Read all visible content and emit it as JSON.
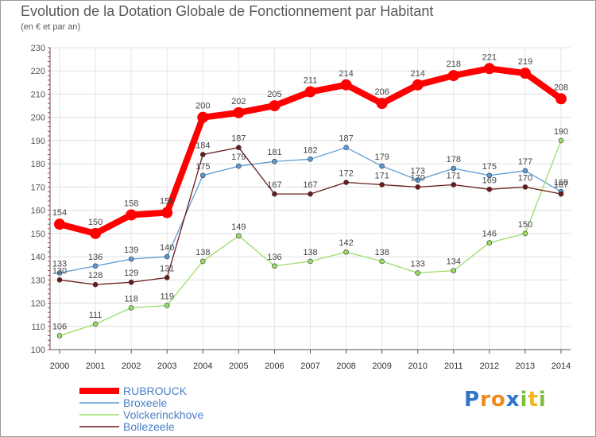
{
  "chart_data": {
    "type": "line",
    "title": "Evolution de la Dotation Globale de Fonctionnement par Habitant",
    "subtitle": "(en € et par an)",
    "xlabel": "",
    "ylabel": "",
    "categories": [
      "2000",
      "2001",
      "2002",
      "2003",
      "2004",
      "2005",
      "2006",
      "2007",
      "2008",
      "2009",
      "2010",
      "2011",
      "2012",
      "2013",
      "2014"
    ],
    "ylim": [
      100,
      230
    ],
    "yticks": [
      100,
      110,
      120,
      130,
      140,
      150,
      160,
      170,
      180,
      190,
      200,
      210,
      220,
      230
    ],
    "grid": true,
    "legend_position": "bottom-left",
    "series": [
      {
        "name": "RUBROUCK",
        "color": "#ff0000",
        "emphasis": true,
        "values": [
          154,
          150,
          158,
          159,
          200,
          202,
          205,
          211,
          214,
          206,
          214,
          218,
          221,
          219,
          208
        ]
      },
      {
        "name": "Broxeele",
        "color": "#5b9bd5",
        "emphasis": false,
        "values": [
          133,
          136,
          139,
          140,
          175,
          179,
          181,
          182,
          187,
          179,
          173,
          178,
          175,
          177,
          168
        ]
      },
      {
        "name": "Volckerinckhove",
        "color": "#99dd66",
        "emphasis": false,
        "values": [
          106,
          111,
          118,
          119,
          138,
          149,
          136,
          138,
          142,
          138,
          133,
          134,
          146,
          150,
          190
        ]
      },
      {
        "name": "Bollezeele",
        "color": "#6b1a1a",
        "emphasis": false,
        "values": [
          130,
          128,
          129,
          131,
          184,
          187,
          167,
          167,
          172,
          171,
          170,
          171,
          169,
          170,
          167
        ]
      }
    ]
  },
  "brand": {
    "name": "Proxiti",
    "letters": [
      "P",
      "r",
      "o",
      "x",
      "i",
      "t",
      "i"
    ],
    "colors": [
      "#2e75c8",
      "#f08a1c",
      "#f08a1c",
      "#2e75c8",
      "#7cbf3a",
      "#f0b51c",
      "#7cbf3a"
    ]
  }
}
